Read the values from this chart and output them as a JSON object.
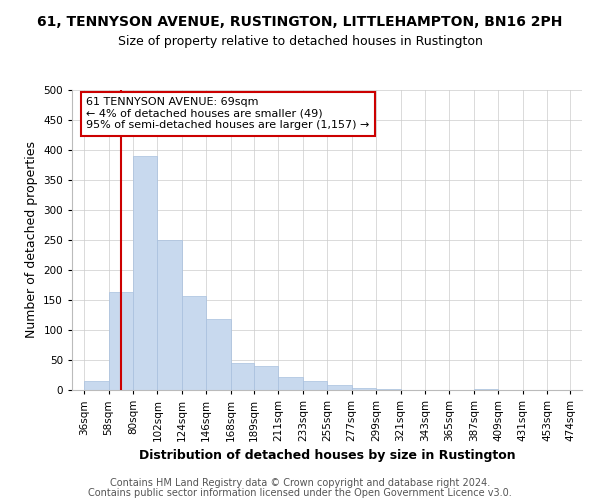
{
  "title": "61, TENNYSON AVENUE, RUSTINGTON, LITTLEHAMPTON, BN16 2PH",
  "subtitle": "Size of property relative to detached houses in Rustington",
  "xlabel": "Distribution of detached houses by size in Rustington",
  "ylabel": "Number of detached properties",
  "bar_edges": [
    36,
    58,
    80,
    102,
    124,
    146,
    168,
    189,
    211,
    233,
    255,
    277,
    299,
    321,
    343,
    365,
    387,
    409,
    431,
    453,
    474
  ],
  "bar_labels": [
    "36sqm",
    "58sqm",
    "80sqm",
    "102sqm",
    "124sqm",
    "146sqm",
    "168sqm",
    "189sqm",
    "211sqm",
    "233sqm",
    "255sqm",
    "277sqm",
    "299sqm",
    "321sqm",
    "343sqm",
    "365sqm",
    "387sqm",
    "409sqm",
    "431sqm",
    "453sqm",
    "474sqm"
  ],
  "bar_heights": [
    15,
    163,
    390,
    250,
    157,
    118,
    45,
    40,
    22,
    15,
    8,
    3,
    1,
    0,
    0,
    0,
    2,
    0,
    0,
    0
  ],
  "bar_color": "#c8d9ee",
  "bar_edge_color": "#a8c0de",
  "property_size": 69,
  "property_line_color": "#cc0000",
  "annotation_text": "61 TENNYSON AVENUE: 69sqm\n← 4% of detached houses are smaller (49)\n95% of semi-detached houses are larger (1,157) →",
  "annotation_box_color": "#ffffff",
  "annotation_box_edge_color": "#cc0000",
  "ylim": [
    0,
    500
  ],
  "yticks": [
    0,
    50,
    100,
    150,
    200,
    250,
    300,
    350,
    400,
    450,
    500
  ],
  "footer_line1": "Contains HM Land Registry data © Crown copyright and database right 2024.",
  "footer_line2": "Contains public sector information licensed under the Open Government Licence v3.0.",
  "title_fontsize": 10,
  "subtitle_fontsize": 9,
  "axis_label_fontsize": 9,
  "tick_fontsize": 7.5,
  "annotation_fontsize": 8,
  "footer_fontsize": 7
}
